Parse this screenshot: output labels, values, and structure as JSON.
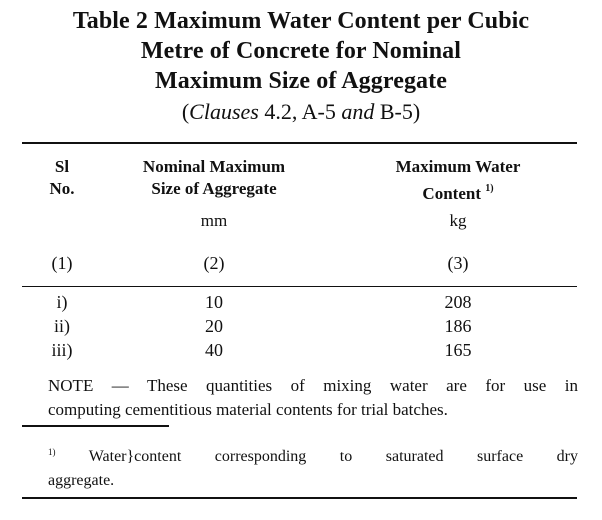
{
  "table": {
    "title_line1": "Table 2 Maximum Water Content per Cubic",
    "title_line2": "Metre of Concrete for Nominal",
    "title_line3": "Maximum Size of Aggregate",
    "clauses_open": "(",
    "clauses_word": "Clauses",
    "clauses_mid1": " 4.2, A-5 ",
    "clauses_and": "and",
    "clauses_mid2": " B-5)",
    "headers": {
      "col1_line1": "Sl",
      "col1_line2": "No.",
      "col2_line1": "Nominal Maximum",
      "col2_line2": "Size of Aggregate",
      "col3_line1": "Maximum Water",
      "col3_line2": "Content",
      "col3_footnote_marker": "1)"
    },
    "units": {
      "col2": "mm",
      "col3": "kg"
    },
    "column_numbers": [
      "(1)",
      "(2)",
      "(3)"
    ],
    "rows": [
      {
        "sl": "i)",
        "size": "10",
        "water": "208"
      },
      {
        "sl": "ii)",
        "size": "20",
        "water": "186"
      },
      {
        "sl": "iii)",
        "size": "40",
        "water": "165"
      }
    ],
    "note_line1": "NOTE — These quantities of mixing water are for use in",
    "note_line2": "computing cementitious material contents for trial batches.",
    "footnote_marker": "1)",
    "footnote_line1": " Water}content corresponding to saturated surface dry",
    "footnote_line2": "aggregate."
  }
}
